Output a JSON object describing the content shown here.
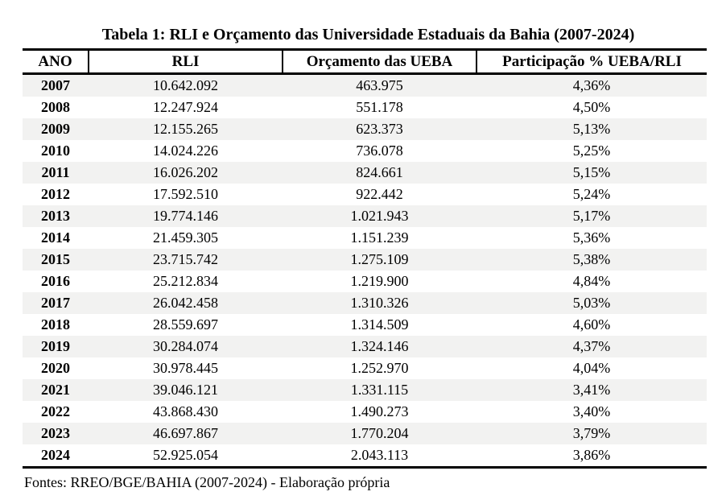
{
  "title": "Tabela 1: RLI e Orçamento das Universidade Estaduais da Bahia (2007-2024)",
  "table": {
    "columns": [
      "ANO",
      "RLI",
      "Orçamento das UEBA",
      "Participação % UEBA/RLI"
    ],
    "rows": [
      [
        "2007",
        "10.642.092",
        "463.975",
        "4,36%"
      ],
      [
        "2008",
        "12.247.924",
        "551.178",
        "4,50%"
      ],
      [
        "2009",
        "12.155.265",
        "623.373",
        "5,13%"
      ],
      [
        "2010",
        "14.024.226",
        "736.078",
        "5,25%"
      ],
      [
        "2011",
        "16.026.202",
        "824.661",
        "5,15%"
      ],
      [
        "2012",
        "17.592.510",
        "922.442",
        "5,24%"
      ],
      [
        "2013",
        "19.774.146",
        "1.021.943",
        "5,17%"
      ],
      [
        "2014",
        "21.459.305",
        "1.151.239",
        "5,36%"
      ],
      [
        "2015",
        "23.715.742",
        "1.275.109",
        "5,38%"
      ],
      [
        "2016",
        "25.212.834",
        "1.219.900",
        "4,84%"
      ],
      [
        "2017",
        "26.042.458",
        "1.310.326",
        "5,03%"
      ],
      [
        "2018",
        "28.559.697",
        "1.314.509",
        "4,60%"
      ],
      [
        "2019",
        "30.284.074",
        "1.324.146",
        "4,37%"
      ],
      [
        "2020",
        "30.978.445",
        "1.252.970",
        "4,04%"
      ],
      [
        "2021",
        "39.046.121",
        "1.331.115",
        "3,41%"
      ],
      [
        "2022",
        "43.868.430",
        "1.490.273",
        "3,40%"
      ],
      [
        "2023",
        "46.697.867",
        "1.770.204",
        "3,79%"
      ],
      [
        "2024",
        "52.925.054",
        "2.043.113",
        "3,86%"
      ]
    ]
  },
  "footer": "Fontes: RREO/BGE/BAHIA (2007-2024) - Elaboração própria",
  "colors": {
    "stripe": "#f2f2f1",
    "border": "#000000",
    "text": "#000000",
    "background": "#ffffff"
  }
}
